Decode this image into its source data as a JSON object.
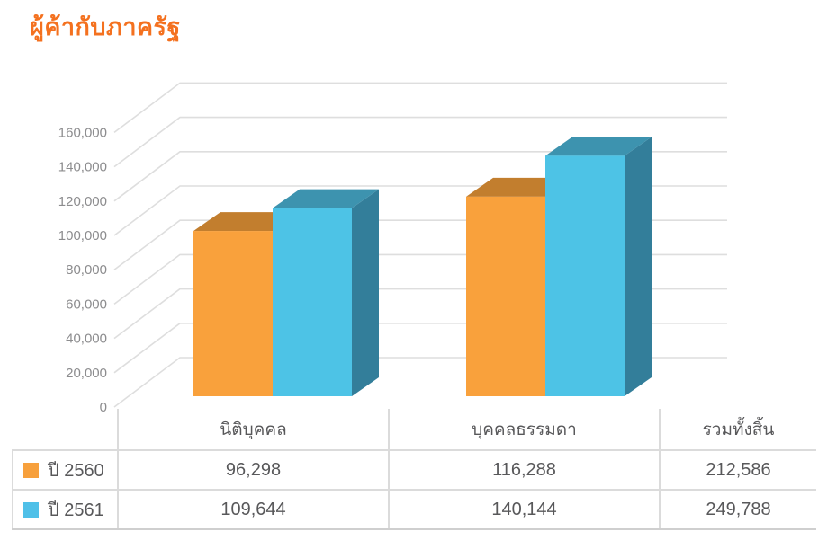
{
  "page": {
    "title": "ผู้ค้ากับภาครัฐ",
    "title_color": "#F4711F",
    "background": "#FFFFFF"
  },
  "chart_data": {
    "type": "bar",
    "style": "3d-clustered-column",
    "title": "ผู้ค้ากับภาครัฐ",
    "categories": [
      "นิติบุคคล",
      "บุคคลธรรมดา"
    ],
    "series": [
      {
        "name": "ปี 2560",
        "values": [
          96298,
          116288
        ],
        "color_front": "#F9A13C",
        "color_top": "#C27E2E",
        "color_side": "#D98A2F"
      },
      {
        "name": "ปี 2561",
        "values": [
          109644,
          140144
        ],
        "color_front": "#4DC3E6",
        "color_top": "#3D93AF",
        "color_side": "#337E9A"
      }
    ],
    "totals": [
      212586,
      249788
    ],
    "ylim": [
      0,
      160000
    ],
    "ytick_step": 20000,
    "ytick_labels": [
      "0",
      "20,000",
      "40,000",
      "60,000",
      "80,000",
      "100,000",
      "120,000",
      "140,000",
      "160,000"
    ],
    "grid": true,
    "gridline_color": "#DEDEDE",
    "axis_label_color": "#8C8C8E",
    "legend_position": "table-rows-left"
  },
  "table": {
    "columns": [
      "นิติบุคคล",
      "บุคคลธรรมดา",
      "รวมทั้งสิ้น"
    ],
    "rows": [
      {
        "label": "ปี 2560",
        "swatch_color": "#F7A03C",
        "values": [
          "96,298",
          "116,288",
          "212,586"
        ]
      },
      {
        "label": "ปี 2561",
        "swatch_color": "#4FC0E8",
        "values": [
          "109,644",
          "140,144",
          "249,788"
        ]
      }
    ],
    "text_color": "#58585A",
    "border_color": "#DBDBDB"
  }
}
